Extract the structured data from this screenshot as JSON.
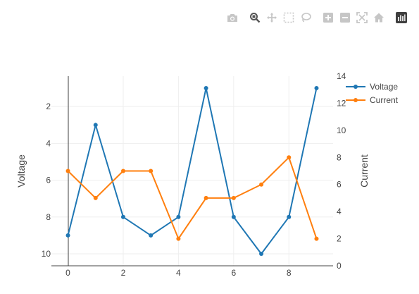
{
  "toolbar": {
    "icons": [
      "camera-icon",
      "zoom-icon",
      "pan-icon",
      "box-select-icon",
      "lasso-select-icon",
      "zoom-in-icon",
      "zoom-out-icon",
      "autoscale-icon",
      "reset-axes-icon",
      "plotly-logo-icon"
    ]
  },
  "chart_data": {
    "type": "line",
    "x": [
      0,
      1,
      2,
      3,
      4,
      5,
      6,
      7,
      8,
      9
    ],
    "series": [
      {
        "name": "Voltage",
        "axis": "left",
        "color": "#1f77b4",
        "values": [
          9,
          3,
          8,
          9,
          8,
          1,
          8,
          10,
          8,
          1
        ]
      },
      {
        "name": "Current",
        "axis": "right",
        "color": "#ff7f0e",
        "values": [
          7,
          5,
          7,
          7,
          2,
          5,
          5,
          6,
          8,
          2
        ]
      }
    ],
    "xlim": [
      -0.6,
      9.6
    ],
    "xticks": [
      0,
      2,
      4,
      6,
      8
    ],
    "ylabel": "Voltage",
    "ylim": [
      10.65,
      0.35
    ],
    "yticks": [
      2,
      4,
      6,
      8,
      10
    ],
    "y2label": "Current",
    "y2lim": [
      0,
      14
    ],
    "y2ticks": [
      0,
      2,
      4,
      6,
      8,
      10,
      12,
      14
    ],
    "legend": "top-right",
    "grid": true
  }
}
